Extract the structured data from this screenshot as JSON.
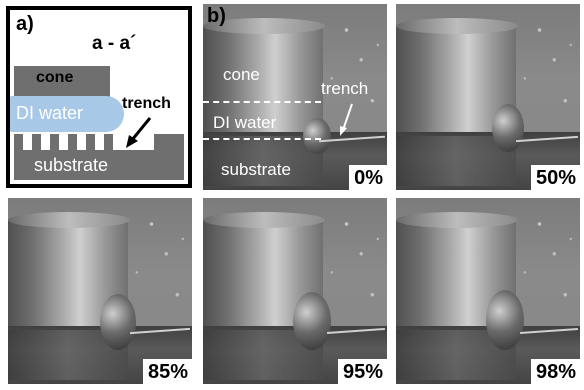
{
  "panel_a": {
    "tag": "a)",
    "section": "a - a´",
    "cone": "cone",
    "water": "DI water",
    "trench": "trench",
    "substrate": "substrate"
  },
  "panel_b": {
    "tag": "b)",
    "labels": {
      "cone": "cone",
      "water": "DI water",
      "trench": "trench",
      "substrate": "substrate"
    },
    "frames": [
      {
        "percent": "0%"
      },
      {
        "percent": "50%"
      },
      {
        "percent": "85%"
      },
      {
        "percent": "95%"
      },
      {
        "percent": "98%"
      }
    ]
  }
}
